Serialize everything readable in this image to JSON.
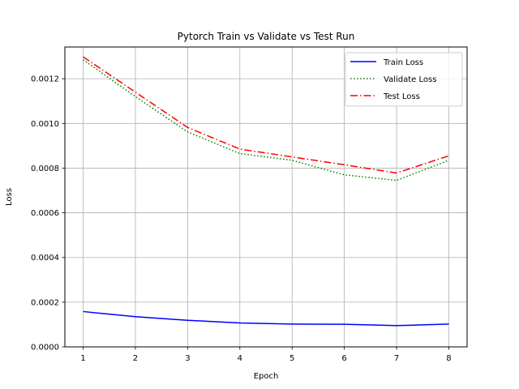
{
  "chart_data": {
    "type": "line",
    "title": "Pytorch Train vs Validate vs Test Run",
    "xlabel": "Epoch",
    "ylabel": "Loss",
    "x": [
      1,
      2,
      3,
      4,
      5,
      6,
      7,
      8
    ],
    "xlim": [
      0.65,
      8.35
    ],
    "ylim": [
      0,
      0.001342
    ],
    "x_ticks": [
      1,
      2,
      3,
      4,
      5,
      6,
      7,
      8
    ],
    "y_ticks": [
      0,
      0.0002,
      0.0004,
      0.0006,
      0.0008,
      0.001,
      0.0012
    ],
    "x_tick_labels": [
      "1",
      "2",
      "3",
      "4",
      "5",
      "6",
      "7",
      "8"
    ],
    "y_tick_labels": [
      "0.0000",
      "0.0002",
      "0.0004",
      "0.0006",
      "0.0008",
      "0.0010",
      "0.0012"
    ],
    "grid": true,
    "legend_position": "top-right",
    "series": [
      {
        "name": "Train Loss",
        "color": "#0000ff",
        "style": "solid",
        "values": [
          0.000158,
          0.000135,
          0.000119,
          0.000107,
          0.000102,
          0.000101,
          9.5e-05,
          0.000102
        ]
      },
      {
        "name": "Validate Loss",
        "color": "#008000",
        "style": "dotted",
        "values": [
          0.001285,
          0.00112,
          0.000962,
          0.000865,
          0.000835,
          0.00077,
          0.000745,
          0.000835
        ]
      },
      {
        "name": "Test Loss",
        "color": "#ff0000",
        "style": "dashdot",
        "values": [
          0.001298,
          0.00114,
          0.000982,
          0.000885,
          0.00085,
          0.000815,
          0.000778,
          0.000855
        ]
      }
    ]
  }
}
